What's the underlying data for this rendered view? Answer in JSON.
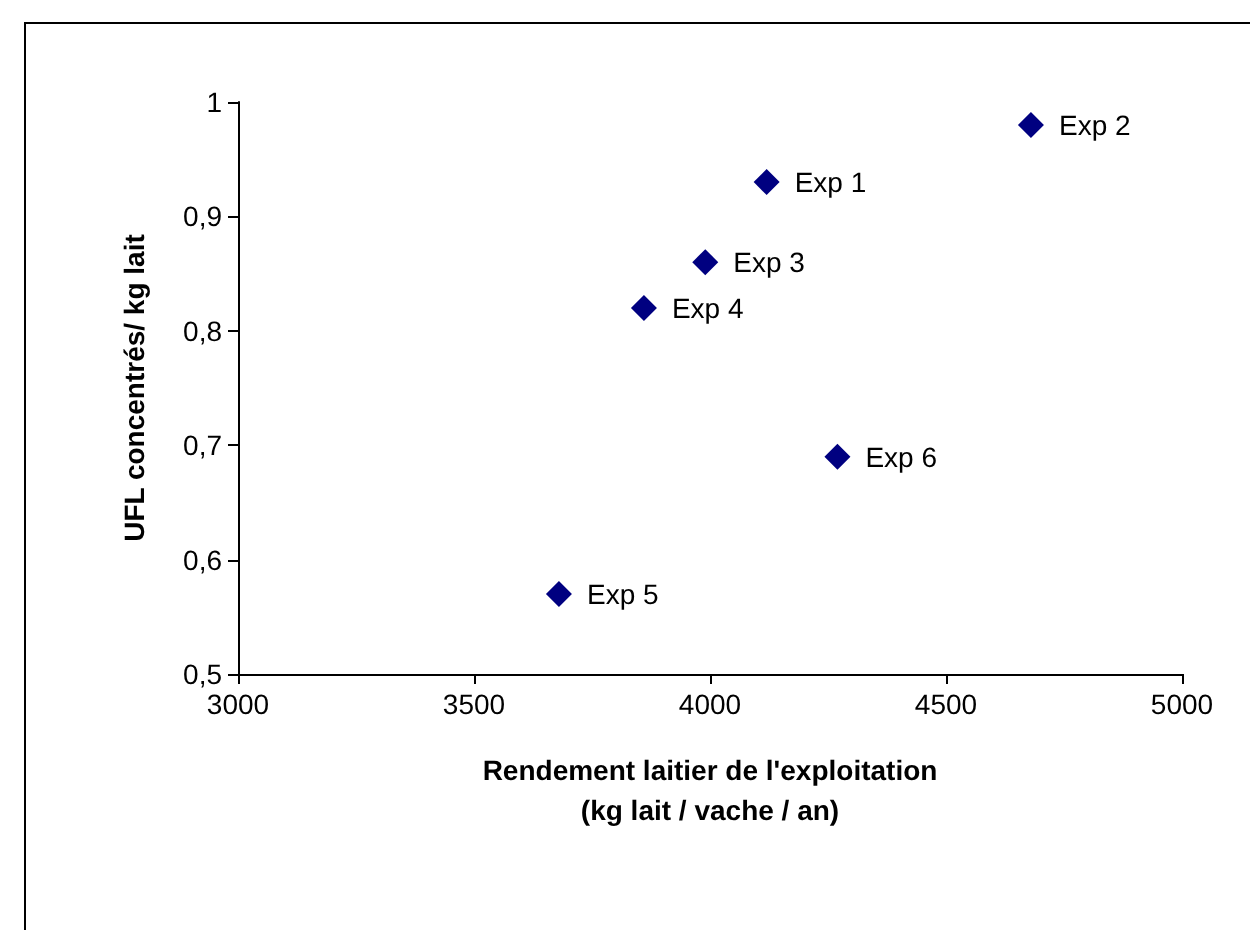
{
  "chart_data": {
    "type": "scatter",
    "xlabel": "Rendement laitier de l'exploitation\n(kg lait / vache / an)",
    "ylabel": "UFL concentrés/ kg lait",
    "x": [
      4120,
      4680,
      3990,
      3860,
      3680,
      4270
    ],
    "series": [
      {
        "color": "#000080",
        "values": [
          0.93,
          0.98,
          0.86,
          0.82,
          0.57,
          0.69
        ]
      }
    ],
    "annotations": [
      {
        "text": "Exp 1",
        "x": 4120,
        "y": 0.93
      },
      {
        "text": "Exp 2",
        "x": 4680,
        "y": 0.98
      },
      {
        "text": "Exp 3",
        "x": 3990,
        "y": 0.86
      },
      {
        "text": "Exp 4",
        "x": 3860,
        "y": 0.82
      },
      {
        "text": "Exp 5",
        "x": 3680,
        "y": 0.57
      },
      {
        "text": "Exp 6",
        "x": 4270,
        "y": 0.69
      }
    ],
    "xlim": [
      3000,
      5000
    ],
    "xticks": [
      3000,
      3500,
      4000,
      4500,
      5000
    ],
    "ylim": [
      0.5,
      1
    ],
    "yticks": [
      {
        "value": 0.5,
        "label": "0,5"
      },
      {
        "value": 0.6,
        "label": "0,6"
      },
      {
        "value": 0.7,
        "label": "0,7"
      },
      {
        "value": 0.8,
        "label": "0,8"
      },
      {
        "value": 0.9,
        "label": "0,9"
      },
      {
        "value": 1,
        "label": "1"
      }
    ],
    "grid": false,
    "marker": "diamond"
  }
}
